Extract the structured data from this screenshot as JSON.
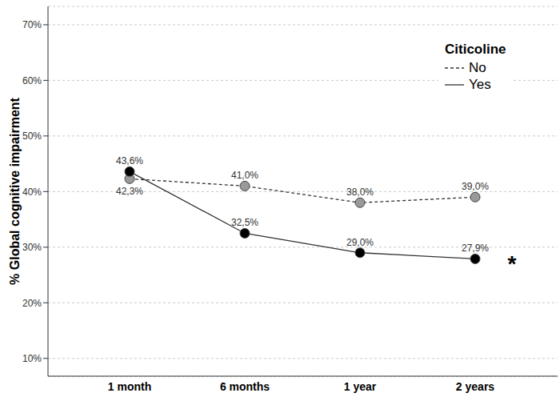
{
  "chart_data": {
    "type": "line",
    "y_label": "% Global cognitive impairment",
    "legend_title": "Citicoline",
    "legend": "upper right",
    "categories": [
      "1 month",
      "6 months",
      "1 year",
      "2 years"
    ],
    "series": [
      {
        "name": "No",
        "color": "#999999",
        "line_style": "dashed",
        "marker": "circle",
        "values": [
          42.3,
          41.0,
          38.0,
          39.0
        ],
        "value_labels": [
          "42,3%",
          "41,0%",
          "38,0%",
          "39,0%"
        ]
      },
      {
        "name": "Yes",
        "color": "#000000",
        "line_style": "solid",
        "marker": "circle",
        "values": [
          43.6,
          32.5,
          29.0,
          27.9
        ],
        "value_labels": [
          "43,6%",
          "32,5%",
          "29,0%",
          "27,9%"
        ]
      }
    ],
    "ylim": [
      6.8,
      73.3
    ],
    "yticks": [
      {
        "value": 10,
        "label": "10%"
      },
      {
        "value": 20,
        "label": "20%"
      },
      {
        "value": 30,
        "label": "30%"
      },
      {
        "value": 40,
        "label": "40%"
      },
      {
        "value": 50,
        "label": "50%"
      },
      {
        "value": 60,
        "label": "60%"
      },
      {
        "value": 70,
        "label": "70%"
      }
    ],
    "grid": true,
    "data_labels": true,
    "annotations": [
      {
        "text": "*",
        "series": "Yes",
        "category": "2 years"
      }
    ]
  }
}
